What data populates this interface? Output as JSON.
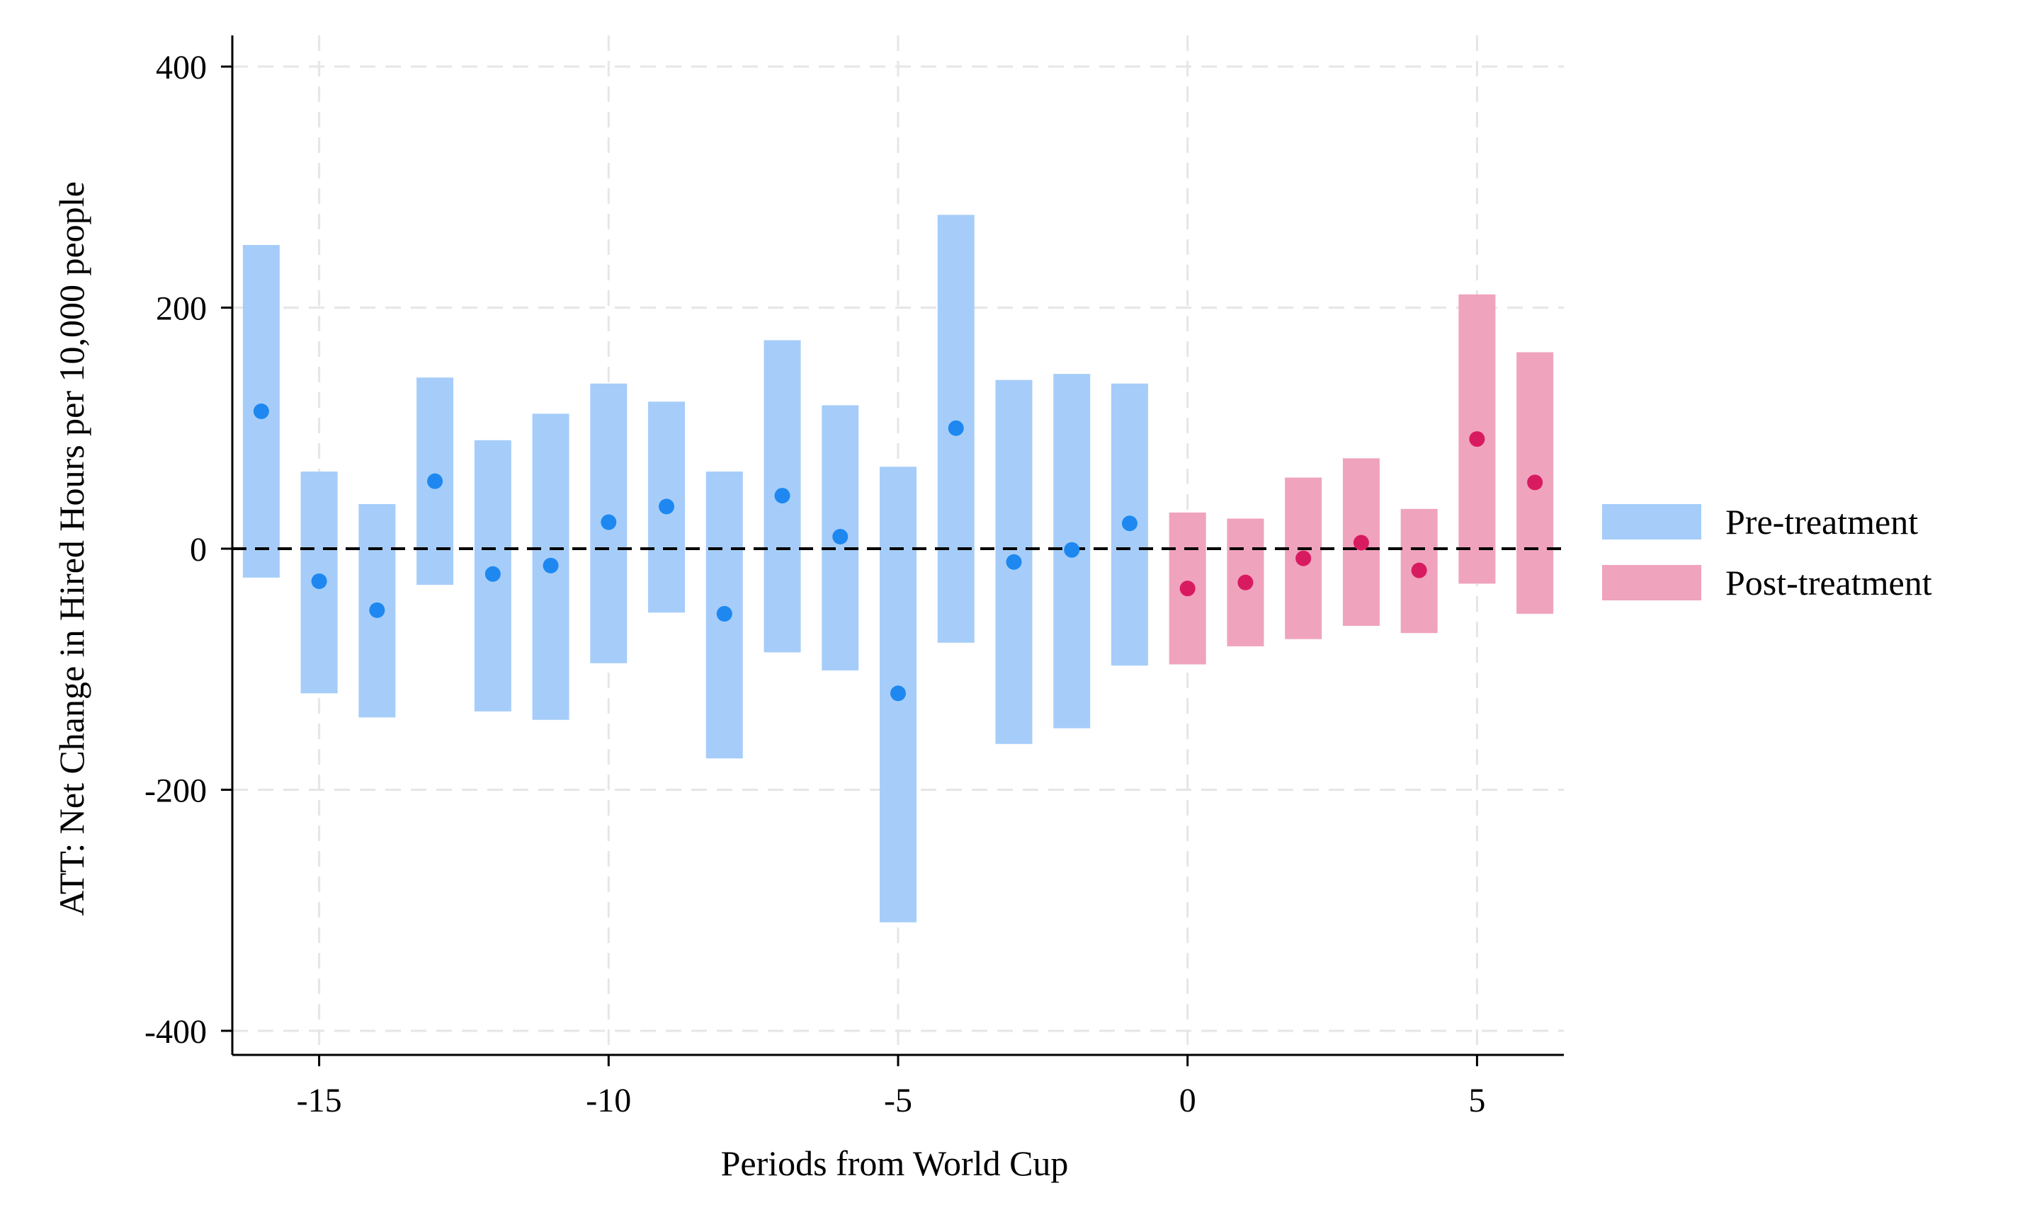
{
  "chart_data": {
    "type": "scatter",
    "subtype": "event-study coefficient plot with confidence bands",
    "xlabel": "Periods from World Cup",
    "ylabel": "ATT: Net Change in Hired Hours per 10,000 people",
    "xlim": [
      -16.5,
      6.5
    ],
    "ylim": [
      -420,
      420
    ],
    "x_ticks": [
      -15,
      -10,
      -5,
      0,
      5
    ],
    "x_tick_labels": [
      "-15",
      "-10",
      "-5",
      "0",
      "5"
    ],
    "y_ticks": [
      -400,
      -200,
      0,
      200,
      400
    ],
    "y_tick_labels": [
      "-400",
      "-200",
      "0",
      "200",
      "400"
    ],
    "grid": true,
    "grid_style": "dashed",
    "reference_line": {
      "y": 0,
      "style": "dashed",
      "color": "#000000"
    },
    "legend": {
      "position": "right"
    },
    "series": [
      {
        "name": "Pre-treatment",
        "color": "#1e88f0",
        "band_color": "#a6cdf9",
        "x": [
          -16,
          -15,
          -14,
          -13,
          -12,
          -11,
          -10,
          -9,
          -8,
          -7,
          -6,
          -5,
          -4,
          -3,
          -2,
          -1
        ],
        "estimate": [
          114,
          -27,
          -51,
          56,
          -21,
          -14,
          22,
          35,
          -54,
          44,
          10,
          -120,
          100,
          -11,
          -1,
          21
        ],
        "ci_low": [
          -24,
          -120,
          -140,
          -30,
          -135,
          -142,
          -95,
          -53,
          -174,
          -86,
          -101,
          -310,
          -78,
          -162,
          -149,
          -97
        ],
        "ci_high": [
          252,
          64,
          37,
          142,
          90,
          112,
          137,
          122,
          64,
          173,
          119,
          68,
          277,
          140,
          145,
          137
        ]
      },
      {
        "name": "Post-treatment",
        "color": "#d81b60",
        "band_color": "#f0a3bd",
        "x": [
          0,
          1,
          2,
          3,
          4,
          5,
          6
        ],
        "estimate": [
          -33,
          -28,
          -8,
          5,
          -18,
          91,
          55
        ],
        "ci_low": [
          -96,
          -81,
          -75,
          -64,
          -70,
          -29,
          -54
        ],
        "ci_high": [
          30,
          25,
          59,
          75,
          33,
          211,
          163
        ]
      }
    ]
  }
}
